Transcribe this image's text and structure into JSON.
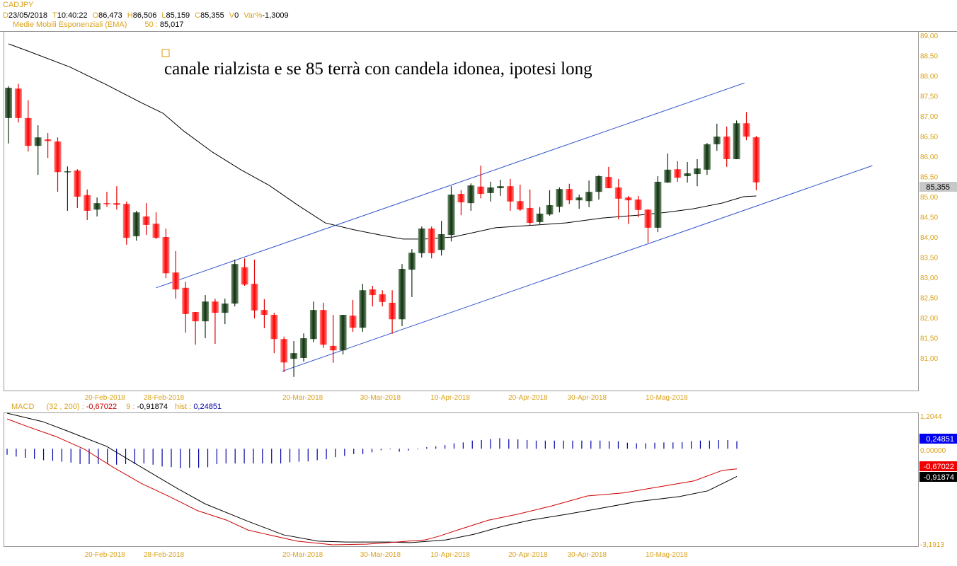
{
  "header": {
    "symbol": "CADJPY",
    "quote": [
      {
        "label": "D",
        "value": "23/05/2018"
      },
      {
        "label": "T",
        "value": "10:40:22"
      },
      {
        "label": "O",
        "value": "86,473"
      },
      {
        "label": "H",
        "value": "86,506"
      },
      {
        "label": "L",
        "value": "85,159"
      },
      {
        "label": "C",
        "value": "85,355"
      },
      {
        "label": "V",
        "value": "0"
      },
      {
        "label": "Var%",
        "value": "-1,3009"
      }
    ],
    "indicator_label": "Medie Mobili Esponenziali (EMA)",
    "indicator_period": "50 :",
    "indicator_value": "85,017"
  },
  "annotation": "canale rialzista e se 85 terrà con candela idonea, ipotesi long",
  "colors": {
    "up": "#1f3f1f",
    "down": "#ff1a1a",
    "axis": "#d9a21b",
    "channel": "#3355cc",
    "macd": "#cc0000",
    "signal": "#000000",
    "hist": "#0000aa"
  },
  "price_axis": {
    "min": 80.2,
    "max": 89.1,
    "ticks": [
      "89,00",
      "88,50",
      "88,00",
      "87,50",
      "87,00",
      "86,50",
      "86,00",
      "85,50",
      "85,00",
      "84,50",
      "84,00",
      "83,50",
      "83,00",
      "82,50",
      "82,00",
      "81,50",
      "81,00"
    ],
    "tick_values": [
      89,
      88.5,
      88,
      87.5,
      87,
      86.5,
      86,
      85.5,
      85,
      84.5,
      84,
      83.5,
      83,
      82.5,
      82,
      81.5,
      81
    ],
    "last_price_label": "85,355",
    "last_price": 85.355
  },
  "date_labels": [
    {
      "text": "20-Feb-2018",
      "bar": 9.8
    },
    {
      "text": "28-Feb-2018",
      "bar": 15.8
    },
    {
      "text": "20-Mar-2018",
      "bar": 29.9
    },
    {
      "text": "30-Mar-2018",
      "bar": 37.8
    },
    {
      "text": "10-Apr-2018",
      "bar": 44.9
    },
    {
      "text": "20-Apr-2018",
      "bar": 52.8
    },
    {
      "text": "30-Apr-2018",
      "bar": 58.8
    },
    {
      "text": "10-Mag-2018",
      "bar": 66.9
    }
  ],
  "chart_data": {
    "type": "candlestick",
    "title": "CADJPY",
    "ohlc": [
      [
        86.95,
        87.74,
        86.32,
        87.7
      ],
      [
        87.68,
        87.8,
        86.84,
        86.95
      ],
      [
        86.95,
        87.39,
        86.12,
        86.26
      ],
      [
        86.26,
        86.77,
        85.54,
        86.47
      ],
      [
        86.42,
        86.58,
        85.96,
        86.38
      ],
      [
        86.37,
        86.47,
        85.12,
        85.61
      ],
      [
        85.61,
        85.75,
        84.65,
        85.63
      ],
      [
        85.65,
        85.68,
        84.72,
        85.0
      ],
      [
        85.04,
        85.18,
        84.42,
        84.65
      ],
      [
        84.68,
        84.98,
        84.51,
        84.84
      ],
      [
        84.84,
        85.12,
        84.75,
        84.82
      ],
      [
        84.84,
        85.26,
        84.68,
        84.8
      ],
      [
        84.82,
        84.88,
        83.81,
        83.98
      ],
      [
        84.02,
        84.65,
        83.91,
        84.61
      ],
      [
        84.51,
        84.84,
        84.05,
        84.3
      ],
      [
        84.33,
        84.61,
        83.95,
        83.98
      ],
      [
        84.0,
        84.21,
        82.98,
        83.1
      ],
      [
        83.12,
        83.65,
        82.47,
        82.7
      ],
      [
        82.74,
        82.89,
        81.63,
        82.09
      ],
      [
        82.14,
        82.14,
        81.33,
        81.91
      ],
      [
        81.91,
        82.56,
        81.49,
        82.4
      ],
      [
        82.4,
        82.47,
        81.35,
        82.12
      ],
      [
        82.12,
        82.47,
        81.84,
        82.35
      ],
      [
        82.35,
        83.44,
        82.28,
        83.33
      ],
      [
        83.25,
        83.47,
        82.79,
        82.82
      ],
      [
        82.84,
        83.44,
        81.98,
        82.18
      ],
      [
        82.19,
        82.46,
        81.74,
        82.07
      ],
      [
        82.07,
        82.12,
        81.12,
        81.47
      ],
      [
        81.47,
        81.53,
        80.65,
        80.89
      ],
      [
        80.98,
        81.42,
        80.53,
        81.12
      ],
      [
        81.0,
        81.61,
        80.91,
        81.49
      ],
      [
        81.47,
        82.4,
        81.39,
        82.19
      ],
      [
        82.19,
        82.37,
        81.25,
        81.33
      ],
      [
        81.3,
        82.07,
        80.88,
        81.19
      ],
      [
        81.19,
        82.07,
        81.09,
        82.07
      ],
      [
        82.05,
        82.44,
        81.65,
        81.75
      ],
      [
        81.75,
        82.84,
        81.65,
        82.68
      ],
      [
        82.7,
        82.79,
        82.28,
        82.56
      ],
      [
        82.58,
        82.68,
        82.28,
        82.39
      ],
      [
        82.37,
        82.68,
        81.6,
        81.96
      ],
      [
        81.96,
        83.33,
        81.79,
        83.21
      ],
      [
        83.19,
        83.7,
        82.51,
        83.61
      ],
      [
        83.6,
        84.26,
        83.49,
        84.21
      ],
      [
        84.21,
        84.26,
        83.47,
        83.6
      ],
      [
        83.68,
        84.4,
        83.54,
        84.07
      ],
      [
        84.05,
        85.26,
        83.89,
        85.05
      ],
      [
        85.07,
        85.16,
        84.54,
        84.86
      ],
      [
        84.84,
        85.33,
        84.65,
        85.28
      ],
      [
        85.25,
        85.77,
        84.96,
        85.07
      ],
      [
        85.09,
        85.37,
        84.88,
        85.23
      ],
      [
        85.21,
        85.42,
        85.02,
        85.26
      ],
      [
        85.26,
        85.44,
        84.65,
        84.88
      ],
      [
        84.89,
        85.3,
        84.65,
        84.68
      ],
      [
        84.72,
        85.18,
        84.28,
        84.35
      ],
      [
        84.37,
        84.74,
        84.32,
        84.58
      ],
      [
        84.56,
        85.16,
        84.53,
        84.79
      ],
      [
        84.75,
        85.23,
        84.61,
        85.19
      ],
      [
        85.19,
        85.32,
        84.82,
        84.91
      ],
      [
        84.91,
        85.05,
        84.7,
        84.98
      ],
      [
        84.89,
        85.4,
        84.74,
        85.12
      ],
      [
        85.12,
        85.53,
        84.93,
        85.51
      ],
      [
        85.49,
        85.74,
        85.21,
        85.21
      ],
      [
        85.23,
        85.44,
        84.44,
        84.95
      ],
      [
        84.98,
        85.02,
        84.32,
        84.91
      ],
      [
        84.93,
        85.02,
        84.49,
        84.67
      ],
      [
        84.68,
        84.68,
        83.86,
        84.23
      ],
      [
        84.23,
        85.51,
        84.12,
        85.37
      ],
      [
        85.35,
        86.07,
        85.35,
        85.67
      ],
      [
        85.68,
        85.88,
        85.37,
        85.47
      ],
      [
        85.51,
        85.86,
        85.35,
        85.58
      ],
      [
        85.56,
        85.93,
        85.26,
        85.7
      ],
      [
        85.67,
        86.33,
        85.54,
        86.3
      ],
      [
        86.3,
        86.81,
        86.14,
        86.49
      ],
      [
        86.49,
        86.74,
        85.74,
        85.93
      ],
      [
        85.93,
        86.89,
        85.93,
        86.82
      ],
      [
        86.82,
        87.1,
        86.4,
        86.49
      ],
      [
        86.473,
        86.506,
        85.159,
        85.355
      ]
    ],
    "ema50": [
      [
        0,
        88.79
      ],
      [
        2,
        88.61
      ],
      [
        6.3,
        88.21
      ],
      [
        10,
        87.77
      ],
      [
        13.5,
        87.33
      ],
      [
        15.7,
        87.07
      ],
      [
        17.8,
        86.63
      ],
      [
        20.7,
        86.11
      ],
      [
        23.6,
        85.67
      ],
      [
        26.5,
        85.28
      ],
      [
        29.4,
        84.79
      ],
      [
        32.2,
        84.35
      ],
      [
        35.1,
        84.18
      ],
      [
        38,
        84.04
      ],
      [
        40.1,
        83.95
      ],
      [
        42.3,
        83.95
      ],
      [
        45.2,
        84.0
      ],
      [
        49.5,
        84.23
      ],
      [
        53.8,
        84.3
      ],
      [
        56.7,
        84.35
      ],
      [
        60.3,
        84.47
      ],
      [
        63.9,
        84.54
      ],
      [
        66.8,
        84.61
      ],
      [
        69.6,
        84.7
      ],
      [
        72.5,
        84.84
      ],
      [
        74.7,
        85.0
      ],
      [
        76,
        85.017
      ]
    ],
    "channel_upper": [
      [
        15,
        82.74
      ],
      [
        74.8,
        87.82
      ]
    ],
    "channel_lower": [
      [
        27.8,
        80.67
      ],
      [
        87.8,
        85.77
      ]
    ]
  },
  "macd": {
    "label": "MACD",
    "params": "(32 , 200) :",
    "macd_value": "-0,67022",
    "signal_label": "9 :",
    "signal_value": "-0,91874",
    "hist_label": "hist :",
    "hist_value": "0,24851",
    "axis_max_label": "1,2044",
    "axis_zero_label": "0,00000",
    "axis_min_label": "-3,1913",
    "min": -3.1913,
    "max": 1.2044,
    "hist_badge": "0,24851",
    "macd_badge": "-0,67022",
    "signal_badge": "-0,91874",
    "hist": [
      -0.2,
      -0.26,
      -0.3,
      -0.34,
      -0.38,
      -0.4,
      -0.43,
      -0.46,
      -0.51,
      -0.51,
      -0.51,
      -0.51,
      -0.53,
      -0.51,
      -0.51,
      -0.49,
      -0.53,
      -0.59,
      -0.61,
      -0.65,
      -0.63,
      -0.63,
      -0.61,
      -0.51,
      -0.49,
      -0.49,
      -0.49,
      -0.49,
      -0.49,
      -0.49,
      -0.49,
      -0.45,
      -0.43,
      -0.42,
      -0.38,
      -0.35,
      -0.28,
      -0.24,
      -0.18,
      -0.18,
      -0.12,
      -0.05,
      -0.02,
      -0.1,
      -0.06,
      -0.02,
      0.05,
      0.08,
      0.12,
      0.18,
      0.21,
      0.27,
      0.29,
      0.32,
      0.35,
      0.32,
      0.31,
      0.29,
      0.27,
      0.27,
      0.27,
      0.27,
      0.27,
      0.27,
      0.27,
      0.27,
      0.25,
      0.25,
      0.2,
      0.18,
      0.18,
      0.2,
      0.21,
      0.21,
      0.22,
      0.25,
      0.27,
      0.27,
      0.29,
      0.29,
      0.25
    ],
    "macd_line": [
      [
        0,
        0.99
      ],
      [
        2.3,
        0.73
      ],
      [
        5.4,
        0.4
      ],
      [
        8.5,
        -0.02
      ],
      [
        11.6,
        -0.61
      ],
      [
        14.7,
        -1.15
      ],
      [
        17.8,
        -1.59
      ],
      [
        20.9,
        -2.06
      ],
      [
        24.05,
        -2.37
      ],
      [
        26.4,
        -2.7
      ],
      [
        28.7,
        -2.86
      ],
      [
        31.8,
        -3.07
      ],
      [
        35.7,
        -3.19
      ],
      [
        39.4,
        -3.17
      ],
      [
        42.7,
        -3.1
      ],
      [
        45.8,
        -3.03
      ],
      [
        47.3,
        -2.91
      ],
      [
        49.7,
        -2.67
      ],
      [
        52.8,
        -2.37
      ],
      [
        55.9,
        -2.18
      ],
      [
        59.7,
        -1.9
      ],
      [
        63.6,
        -1.57
      ],
      [
        67.5,
        -1.47
      ],
      [
        70.6,
        -1.31
      ],
      [
        75.3,
        -1.07
      ],
      [
        78.4,
        -0.72
      ],
      [
        80,
        -0.67
      ]
    ],
    "signal_line": [
      [
        0,
        1.18
      ],
      [
        3.9,
        0.9
      ],
      [
        6.6,
        0.59
      ],
      [
        10.9,
        0.08
      ],
      [
        14.7,
        -0.61
      ],
      [
        18.6,
        -1.31
      ],
      [
        21.7,
        -1.83
      ],
      [
        26.4,
        -2.41
      ],
      [
        30.3,
        -2.86
      ],
      [
        34.1,
        -3.07
      ],
      [
        37.2,
        -3.1
      ],
      [
        39.4,
        -3.1
      ],
      [
        41.9,
        -3.1
      ],
      [
        44.2,
        -3.12
      ],
      [
        48.1,
        -3.03
      ],
      [
        51.2,
        -2.84
      ],
      [
        54.3,
        -2.58
      ],
      [
        57.4,
        -2.37
      ],
      [
        61.3,
        -2.18
      ],
      [
        65.2,
        -1.97
      ],
      [
        69.0,
        -1.76
      ],
      [
        73.7,
        -1.59
      ],
      [
        76.8,
        -1.4
      ],
      [
        80,
        -0.92
      ]
    ]
  }
}
